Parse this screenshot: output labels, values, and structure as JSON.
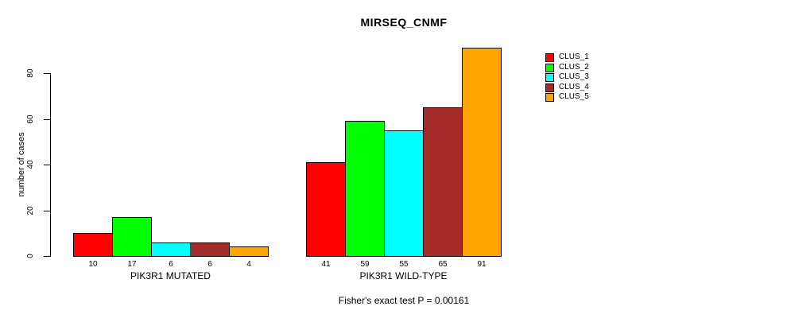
{
  "chart_data": {
    "type": "bar",
    "title": "MIRSEQ_CNMF",
    "ylabel": "number of cases",
    "xlabel": "",
    "yticks": [
      0,
      20,
      40,
      60,
      80
    ],
    "ylim": [
      0,
      91
    ],
    "grid": false,
    "legend_position": "right",
    "series_names": [
      "CLUS_1",
      "CLUS_2",
      "CLUS_3",
      "CLUS_4",
      "CLUS_5"
    ],
    "series_colors": [
      "#FF0000",
      "#00FF00",
      "#00FFFF",
      "#A52A2A",
      "#FFA500"
    ],
    "groups": [
      {
        "label": "PIK3R1 MUTATED",
        "values": [
          10,
          17,
          6,
          6,
          4
        ]
      },
      {
        "label": "PIK3R1 WILD-TYPE",
        "values": [
          41,
          59,
          55,
          65,
          91
        ]
      }
    ],
    "footnote": "Fisher's exact test P = 0.00161"
  }
}
